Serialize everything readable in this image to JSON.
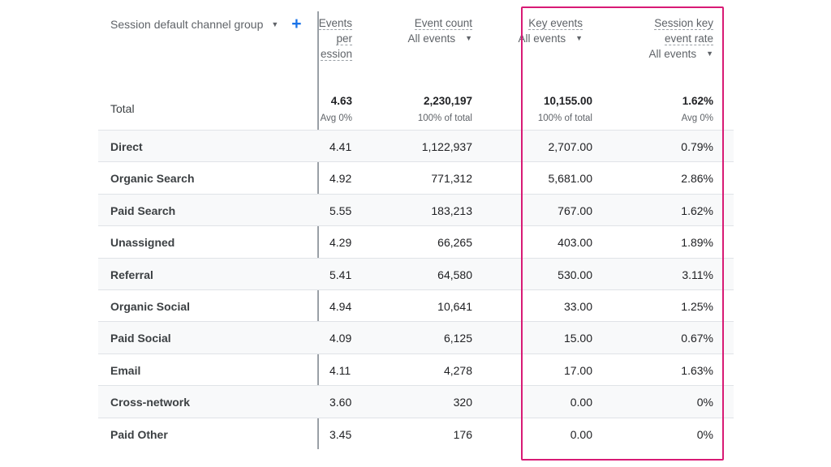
{
  "dimension": {
    "label": "Session default channel group",
    "add_label": "+"
  },
  "columns": [
    {
      "title_lines": [
        "Events",
        "per",
        "ession"
      ],
      "sub": ""
    },
    {
      "title_lines": [
        "Event count"
      ],
      "sub": "All events"
    },
    {
      "title_lines": [
        "Key events"
      ],
      "sub": "All events"
    },
    {
      "title_lines": [
        "Session key",
        "event rate"
      ],
      "sub": "All events"
    }
  ],
  "total": {
    "label": "Total",
    "values": [
      "4.63",
      "2,230,197",
      "10,155.00",
      "1.62%"
    ],
    "subs": [
      "Avg 0%",
      "100% of total",
      "100% of total",
      "Avg 0%"
    ]
  },
  "rows": [
    {
      "name": "Direct",
      "v1": "4.41",
      "v2": "1,122,937",
      "v3": "2,707.00",
      "v4": "0.79%"
    },
    {
      "name": "Organic Search",
      "v1": "4.92",
      "v2": "771,312",
      "v3": "5,681.00",
      "v4": "2.86%"
    },
    {
      "name": "Paid Search",
      "v1": "5.55",
      "v2": "183,213",
      "v3": "767.00",
      "v4": "1.62%"
    },
    {
      "name": "Unassigned",
      "v1": "4.29",
      "v2": "66,265",
      "v3": "403.00",
      "v4": "1.89%"
    },
    {
      "name": "Referral",
      "v1": "5.41",
      "v2": "64,580",
      "v3": "530.00",
      "v4": "3.11%"
    },
    {
      "name": "Organic Social",
      "v1": "4.94",
      "v2": "10,641",
      "v3": "33.00",
      "v4": "1.25%"
    },
    {
      "name": "Paid Social",
      "v1": "4.09",
      "v2": "6,125",
      "v3": "15.00",
      "v4": "0.67%"
    },
    {
      "name": "Email",
      "v1": "4.11",
      "v2": "4,278",
      "v3": "17.00",
      "v4": "1.63%"
    },
    {
      "name": "Cross-network",
      "v1": "3.60",
      "v2": "320",
      "v3": "0.00",
      "v4": "0%"
    },
    {
      "name": "Paid Other",
      "v1": "3.45",
      "v2": "176",
      "v3": "0.00",
      "v4": "0%"
    }
  ],
  "colors": {
    "highlight": "#d81b75",
    "accent": "#1a73e8"
  }
}
